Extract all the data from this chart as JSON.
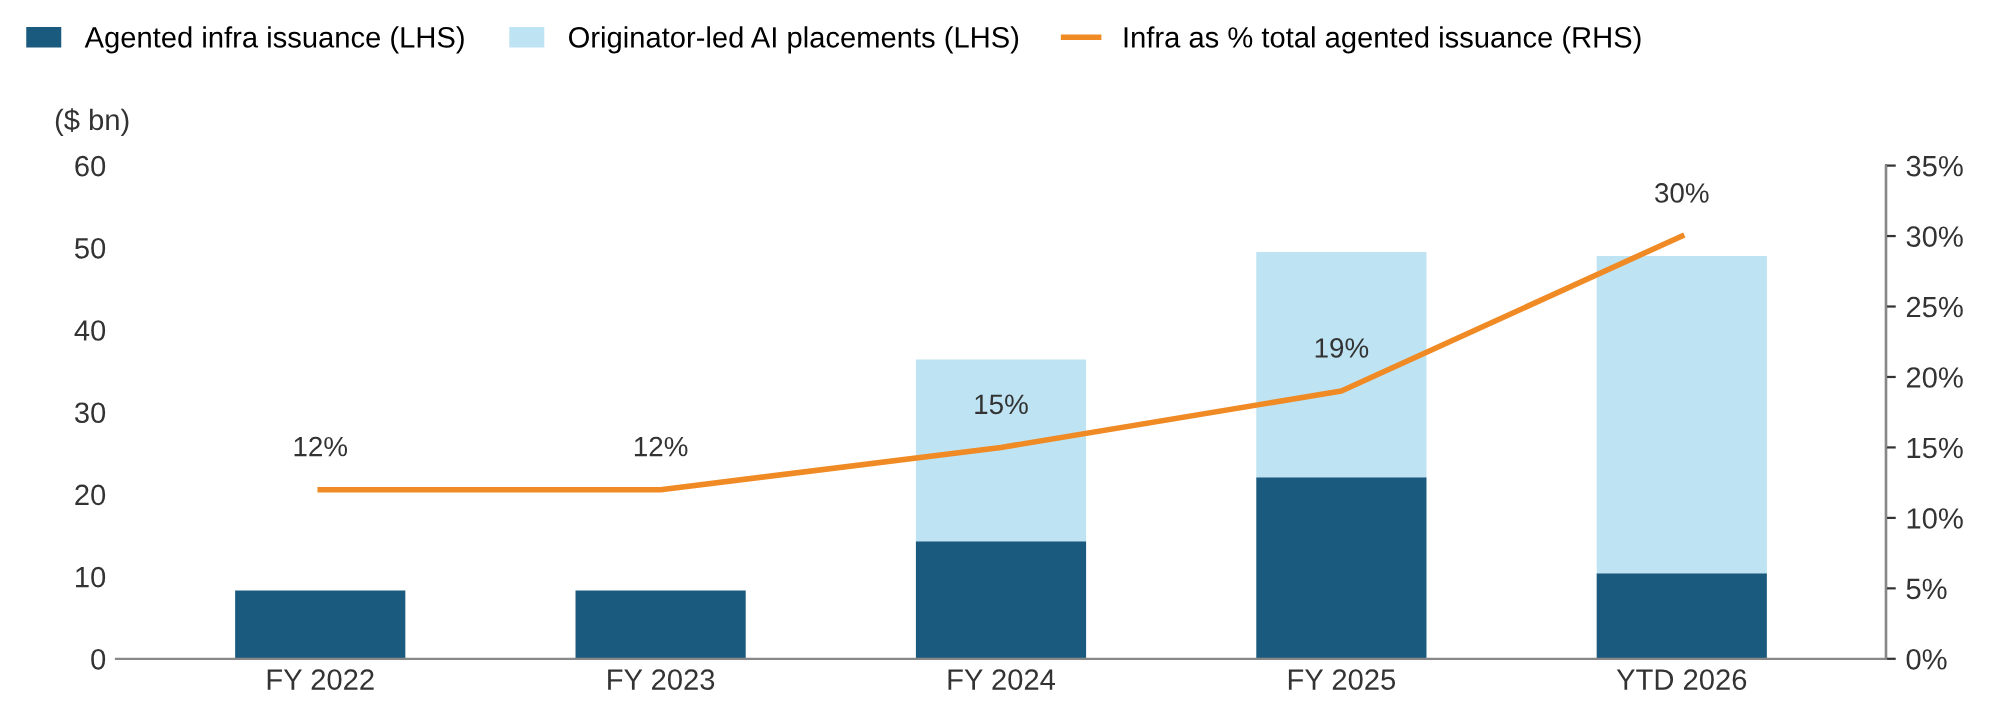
{
  "chart_data": {
    "type": "bar",
    "stacked": true,
    "ylabel": "($ bn)",
    "categories": [
      "FY 2022",
      "FY 2023",
      "FY 2024",
      "FY 2025",
      "YTD 2026"
    ],
    "series": [
      {
        "name": "Agented infra issuance (LHS)",
        "color": "#1a5a7e",
        "values": [
          8.3,
          8.3,
          14.3,
          22.1,
          10.4
        ]
      },
      {
        "name": "Originator-led AI placements (LHS)",
        "color": "#bee3f3",
        "values": [
          null,
          null,
          22.1,
          27.4,
          38.6
        ]
      },
      {
        "name": "Infra as % total agented issuance (RHS)",
        "type": "line",
        "axis": "y2",
        "color": "#f08a24",
        "values": [
          12,
          12,
          15,
          19,
          30
        ],
        "value_labels": [
          "12%",
          "12%",
          "15%",
          "19%",
          "30%"
        ]
      }
    ],
    "ylim": [
      0,
      60
    ],
    "yticks": [
      0,
      10,
      20,
      30,
      40,
      50,
      60
    ],
    "y2lim": [
      0,
      35
    ],
    "y2ticks": [
      {
        "value": 0,
        "label": "0%"
      },
      {
        "value": 5,
        "label": "5%"
      },
      {
        "value": 10,
        "label": "10%"
      },
      {
        "value": 15,
        "label": "15%"
      },
      {
        "value": 20,
        "label": "20%"
      },
      {
        "value": 25,
        "label": "25%"
      },
      {
        "value": 30,
        "label": "30%"
      },
      {
        "value": 35,
        "label": "35%"
      }
    ],
    "grid": false,
    "legend": "top"
  }
}
